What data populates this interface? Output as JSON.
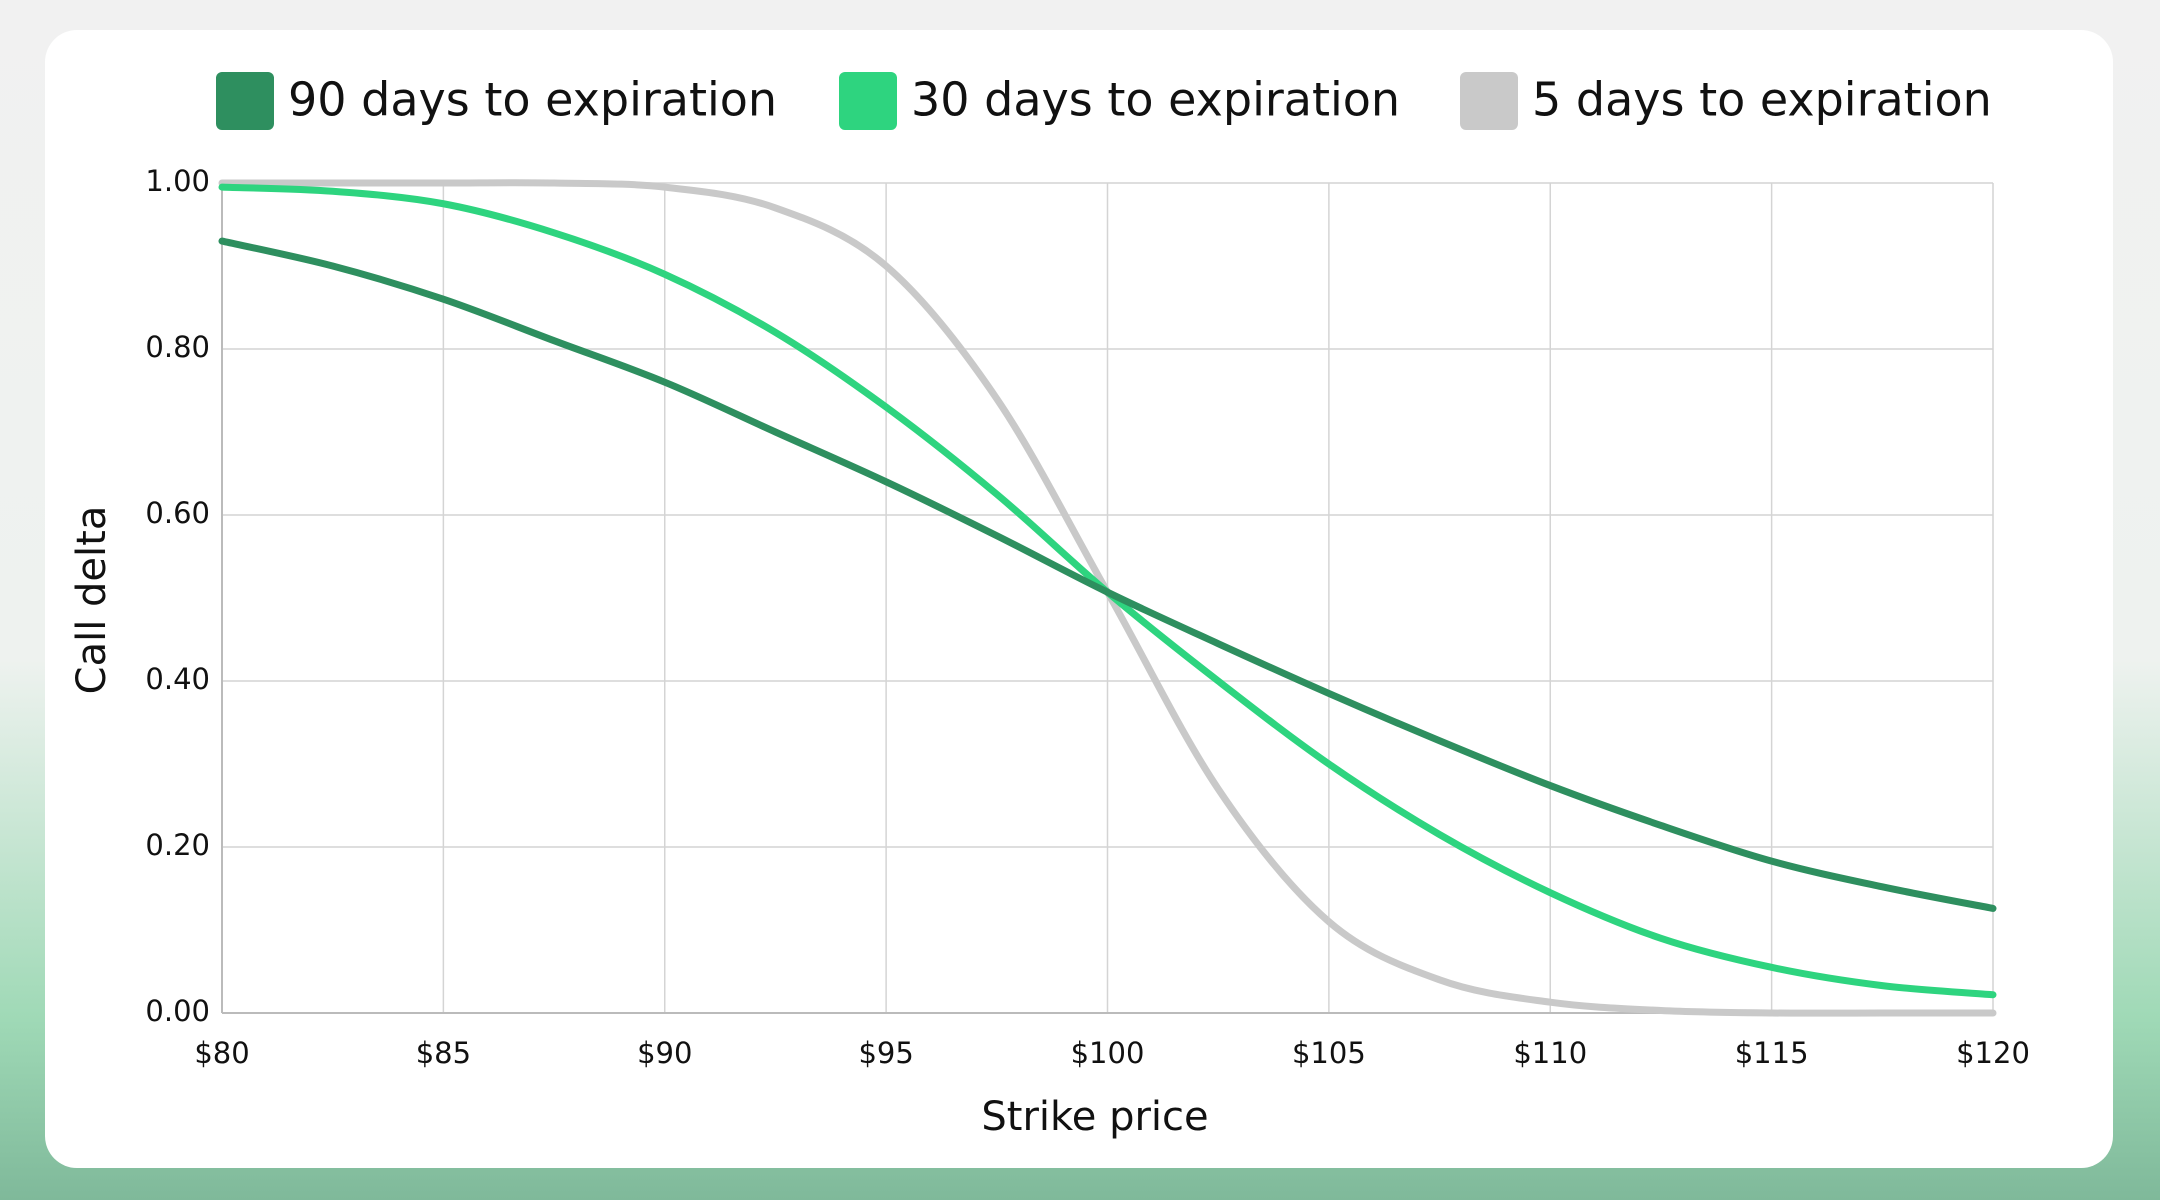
{
  "chart_data": {
    "type": "line",
    "x_label": "Strike price",
    "y_label": "Call delta",
    "x": [
      80,
      82.5,
      85,
      87.5,
      90,
      92.5,
      95,
      97.5,
      100,
      102.5,
      105,
      107.5,
      110,
      112.5,
      115,
      117.5,
      120
    ],
    "series": [
      {
        "name": "90 days to expiration",
        "color": "#2e8f5f",
        "values": [
          0.93,
          0.9,
          0.86,
          0.81,
          0.76,
          0.7,
          0.64,
          0.575,
          0.507,
          0.445,
          0.385,
          0.328,
          0.274,
          0.226,
          0.183,
          0.152,
          0.126
        ]
      },
      {
        "name": "30 days to expiration",
        "color": "#2ed47f",
        "values": [
          0.995,
          0.99,
          0.975,
          0.94,
          0.89,
          0.82,
          0.73,
          0.625,
          0.507,
          0.4,
          0.3,
          0.215,
          0.145,
          0.09,
          0.055,
          0.033,
          0.022
        ]
      },
      {
        "name": "5 days to expiration",
        "color": "#c9c9c9",
        "values": [
          1,
          1,
          1,
          1,
          0.995,
          0.97,
          0.9,
          0.74,
          0.507,
          0.27,
          0.11,
          0.04,
          0.013,
          0.003,
          0,
          0,
          0
        ]
      }
    ],
    "xlim": [
      80,
      120
    ],
    "xticks": [
      {
        "value": 80,
        "label": "$80"
      },
      {
        "value": 85,
        "label": "$85"
      },
      {
        "value": 90,
        "label": "$90"
      },
      {
        "value": 95,
        "label": "$95"
      },
      {
        "value": 100,
        "label": "$100"
      },
      {
        "value": 105,
        "label": "$105"
      },
      {
        "value": 110,
        "label": "$110"
      },
      {
        "value": 115,
        "label": "$115"
      },
      {
        "value": 120,
        "label": "$120"
      }
    ],
    "ylim": [
      0,
      1
    ],
    "yticks": [
      {
        "value": 0,
        "label": "0.00"
      },
      {
        "value": 0.2,
        "label": "0.20"
      },
      {
        "value": 0.4,
        "label": "0.40"
      },
      {
        "value": 0.6,
        "label": "0.60"
      },
      {
        "value": 0.8,
        "label": "0.80"
      },
      {
        "value": 1,
        "label": "1.00"
      }
    ],
    "grid": true,
    "legend": "top"
  }
}
